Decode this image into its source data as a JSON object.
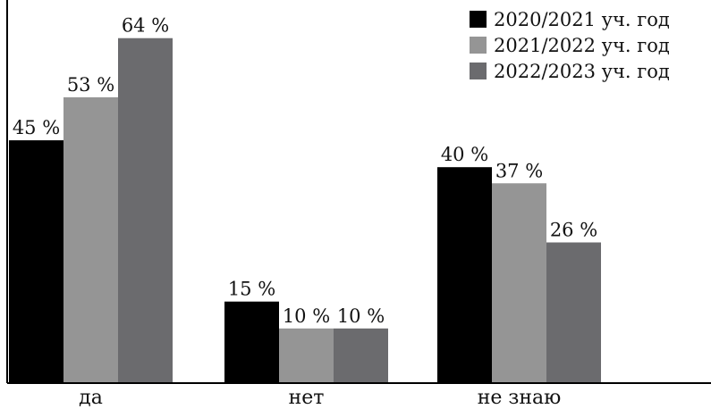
{
  "chart_data": {
    "type": "bar",
    "categories": [
      "да",
      "нет",
      "не знаю"
    ],
    "series": [
      {
        "name": "2020/2021 уч. год",
        "color": "#000000",
        "values": [
          45,
          15,
          40
        ],
        "labels": [
          "45 %",
          "15 %",
          "40 %"
        ]
      },
      {
        "name": "2021/2022 уч. год",
        "color": "#959595",
        "values": [
          53,
          10,
          37
        ],
        "labels": [
          "53 %",
          "10 %",
          "37 %"
        ]
      },
      {
        "name": "2022/2023 уч. год",
        "color": "#6b6b6e",
        "values": [
          64,
          10,
          26
        ],
        "labels": [
          "64 %",
          "10 %",
          "26 %"
        ]
      }
    ],
    "ylim": [
      0,
      70
    ],
    "grid": false,
    "legend_position": "top-right",
    "title": "",
    "xlabel": "",
    "ylabel": ""
  }
}
